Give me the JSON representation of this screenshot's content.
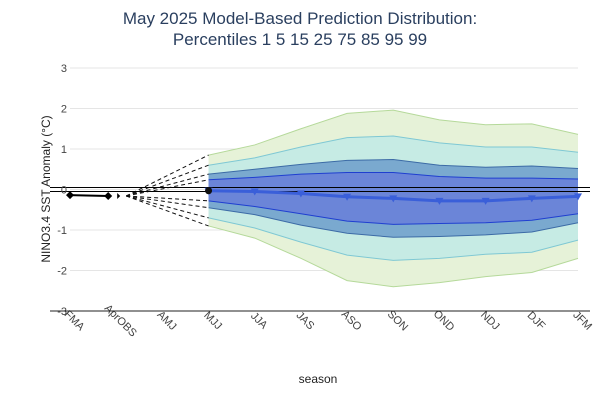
{
  "chart_data": {
    "type": "line",
    "title_lines": [
      "May 2025 Model-Based Prediction Distribution:",
      "Percentiles 1 5 15 25 75 85 95 99"
    ],
    "xlabel": "season",
    "ylabel": "NINO3.4 SST Anomaly (°C)",
    "ylim": [
      -3,
      3
    ],
    "yticks": [
      -3,
      -2,
      -1,
      0,
      1,
      2,
      3
    ],
    "categories": [
      "FMA",
      "AprOBS",
      "AMJ",
      "MJJ",
      "JJA",
      "JAS",
      "ASO",
      "SON",
      "OND",
      "NDJ",
      "DJF",
      "JFM"
    ],
    "observed": {
      "name": "observed",
      "x": [
        "FMA",
        "AprOBS"
      ],
      "values": [
        -0.14,
        -0.16
      ],
      "color": "#000000"
    },
    "forecast_seasons": [
      "MJJ",
      "JJA",
      "JAS",
      "ASO",
      "SON",
      "OND",
      "NDJ",
      "DJF",
      "JFM"
    ],
    "median": {
      "name": "median",
      "values": [
        -0.03,
        -0.05,
        -0.1,
        -0.18,
        -0.22,
        -0.28,
        -0.28,
        -0.22,
        -0.17
      ],
      "color": "#3a5fd9"
    },
    "bands": [
      {
        "name": "1-99 percentile",
        "lower": [
          -0.9,
          -1.2,
          -1.7,
          -2.25,
          -2.4,
          -2.3,
          -2.15,
          -2.05,
          -1.7
        ],
        "upper": [
          0.85,
          1.1,
          1.5,
          1.88,
          1.96,
          1.72,
          1.6,
          1.62,
          1.36
        ],
        "fill": "#e6f2d8",
        "stroke": "#b5d99a"
      },
      {
        "name": "5-95 percentile",
        "lower": [
          -0.7,
          -0.95,
          -1.3,
          -1.62,
          -1.75,
          -1.7,
          -1.6,
          -1.55,
          -1.25
        ],
        "upper": [
          0.6,
          0.78,
          1.05,
          1.28,
          1.32,
          1.15,
          1.05,
          1.05,
          0.92
        ],
        "fill": "#c6ebe4",
        "stroke": "#7fc8d4"
      },
      {
        "name": "15-85 percentile",
        "lower": [
          -0.45,
          -0.62,
          -0.88,
          -1.08,
          -1.18,
          -1.16,
          -1.12,
          -1.05,
          -0.82
        ],
        "upper": [
          0.38,
          0.5,
          0.62,
          0.72,
          0.74,
          0.6,
          0.55,
          0.58,
          0.52
        ],
        "fill": "#7aa9cf",
        "stroke": "#3c6ba6"
      },
      {
        "name": "25-75 percentile",
        "lower": [
          -0.28,
          -0.42,
          -0.6,
          -0.78,
          -0.86,
          -0.84,
          -0.82,
          -0.76,
          -0.6
        ],
        "upper": [
          0.24,
          0.3,
          0.38,
          0.42,
          0.42,
          0.32,
          0.28,
          0.28,
          0.26
        ],
        "fill": "#6b85d8",
        "stroke": "#1f3fd0"
      }
    ],
    "fan_lines_from": "AprOBS",
    "fan_lines_to": "MJJ",
    "legend": "none",
    "grid": true,
    "reference_lines": [
      0.05,
      -0.05
    ]
  }
}
